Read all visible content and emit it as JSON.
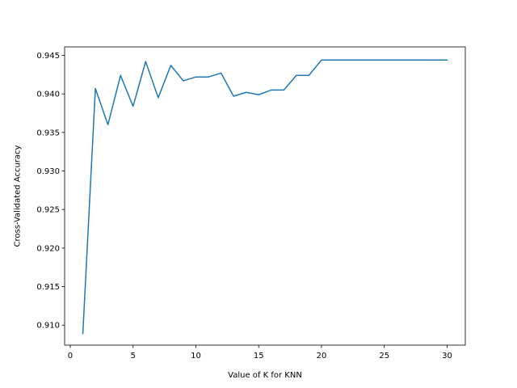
{
  "chart_data": {
    "type": "line",
    "title": "",
    "xlabel": "Value of K for KNN",
    "ylabel": "Cross-Validated Accuracy",
    "xlim": [
      -0.45,
      31.45
    ],
    "ylim": [
      0.9074,
      0.9461
    ],
    "xticks": [
      0,
      5,
      10,
      15,
      20,
      25,
      30
    ],
    "yticks": [
      0.91,
      0.915,
      0.92,
      0.925,
      0.93,
      0.935,
      0.94,
      0.945
    ],
    "ytick_labels": [
      "0.910",
      "0.915",
      "0.920",
      "0.925",
      "0.930",
      "0.935",
      "0.940",
      "0.945"
    ],
    "grid": false,
    "line_color": "#1f77b4",
    "series": [
      {
        "x": [
          1,
          2,
          3,
          4,
          5,
          6,
          7,
          8,
          9,
          10,
          11,
          12,
          13,
          14,
          15,
          16,
          17,
          18,
          19,
          20,
          21,
          22,
          23,
          24,
          25,
          26,
          27,
          28,
          29,
          30
        ],
        "values": [
          0.9089,
          0.9407,
          0.936,
          0.9424,
          0.9384,
          0.9442,
          0.9395,
          0.9437,
          0.9417,
          0.9422,
          0.9422,
          0.9427,
          0.9397,
          0.9402,
          0.9399,
          0.9405,
          0.9405,
          0.9424,
          0.9424,
          0.9444,
          0.9444,
          0.9444,
          0.9444,
          0.9444,
          0.9444,
          0.9444,
          0.9444,
          0.9444,
          0.9444,
          0.9444
        ]
      }
    ]
  }
}
